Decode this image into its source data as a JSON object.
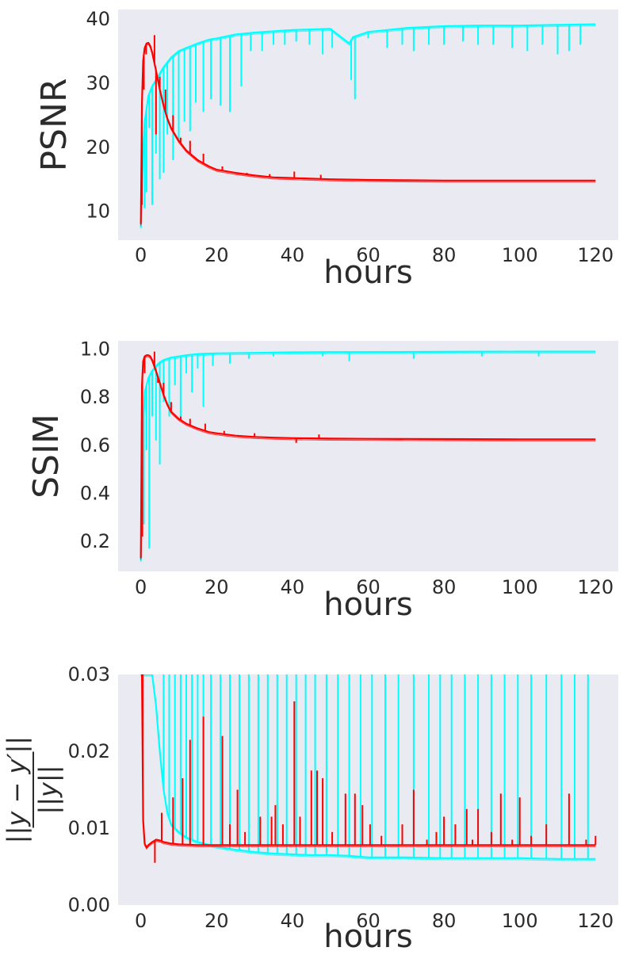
{
  "chart_data": [
    {
      "type": "line",
      "title": "",
      "xlabel": "hours",
      "ylabel": "PSNR",
      "xlim": [
        -6,
        126
      ],
      "ylim": [
        5.5,
        41.5
      ],
      "xticks": [
        0,
        20,
        40,
        60,
        80,
        100,
        120
      ],
      "yticks": [
        10,
        20,
        30,
        40
      ],
      "grid": false,
      "legend": "none",
      "background": "#eaeaf2",
      "series": [
        {
          "color": "#00ffff",
          "x": [
            0.0,
            0.5,
            1.0,
            2.0,
            3.0,
            4.0,
            5.0,
            6.0,
            8.0,
            10.0,
            12.0,
            15.0,
            18.0,
            20.0,
            25.0,
            30.0,
            35.0,
            40.0,
            45.0,
            50.0,
            55.0,
            56.0,
            60.0,
            70.0,
            80.0,
            90.0,
            100.0,
            110.0,
            120.0
          ],
          "y": [
            7.5,
            18.0,
            24.0,
            28.0,
            29.5,
            30.5,
            31.5,
            32.5,
            34.0,
            35.0,
            35.5,
            36.2,
            36.8,
            37.0,
            37.6,
            37.9,
            38.1,
            38.3,
            38.4,
            38.5,
            36.2,
            37.2,
            38.0,
            38.6,
            38.9,
            39.0,
            39.0,
            39.1,
            39.2
          ],
          "dips": [
            [
              1.0,
              10.5
            ],
            [
              1.5,
              13.0
            ],
            [
              2.2,
              23.0
            ],
            [
              3.0,
              11.0
            ],
            [
              4.0,
              19.0
            ],
            [
              5.0,
              15.0
            ],
            [
              6.0,
              16.0
            ],
            [
              7.0,
              22.0
            ],
            [
              8.5,
              18.0
            ],
            [
              10.0,
              21.0
            ],
            [
              11.5,
              24.0
            ],
            [
              13.0,
              22.5
            ],
            [
              14.5,
              27.0
            ],
            [
              16.5,
              25.5
            ],
            [
              18.5,
              27.5
            ],
            [
              21.0,
              26.5
            ],
            [
              23.5,
              25.5
            ],
            [
              26.5,
              29.5
            ],
            [
              29.0,
              35.0
            ],
            [
              32.0,
              35.0
            ],
            [
              35.0,
              36.0
            ],
            [
              38.0,
              36.0
            ],
            [
              41.0,
              36.5
            ],
            [
              44.5,
              36.0
            ],
            [
              48.0,
              34.5
            ],
            [
              50.5,
              35.5
            ],
            [
              55.5,
              30.5
            ],
            [
              56.5,
              27.5
            ],
            [
              60.0,
              37.0
            ],
            [
              65.0,
              35.5
            ],
            [
              69.0,
              36.0
            ],
            [
              72.0,
              35.0
            ],
            [
              76.0,
              36.0
            ],
            [
              80.0,
              36.0
            ],
            [
              85.0,
              36.5
            ],
            [
              89.0,
              36.0
            ],
            [
              93.0,
              36.0
            ],
            [
              98.0,
              35.5
            ],
            [
              102.0,
              35.0
            ],
            [
              106.0,
              36.0
            ],
            [
              110.0,
              34.5
            ],
            [
              113.0,
              35.0
            ],
            [
              116.0,
              36.0
            ]
          ]
        },
        {
          "color": "#ff0000",
          "x": [
            0.0,
            0.3,
            0.6,
            1.0,
            1.5,
            2.0,
            2.5,
            3.0,
            4.0,
            5.0,
            6.0,
            7.0,
            8.0,
            10.0,
            12.0,
            15.0,
            18.0,
            20.0,
            25.0,
            30.0,
            35.0,
            40.0,
            50.0,
            60.0,
            70.0,
            80.0,
            100.0,
            120.0
          ],
          "y": [
            8.0,
            27.0,
            33.5,
            35.5,
            36.2,
            36.3,
            35.8,
            34.8,
            32.0,
            29.0,
            26.5,
            24.5,
            23.0,
            21.0,
            19.5,
            18.0,
            17.0,
            16.5,
            16.0,
            15.6,
            15.3,
            15.2,
            15.0,
            14.9,
            14.85,
            14.8,
            14.8,
            14.8
          ],
          "spikes": [
            [
              0.3,
              11.0
            ],
            [
              0.8,
              29.0
            ],
            [
              1.4,
              34.5
            ],
            [
              3.6,
              37.5
            ],
            [
              4.0,
              22.0
            ],
            [
              5.0,
              31.0
            ],
            [
              6.5,
              29.0
            ],
            [
              8.5,
              25.0
            ],
            [
              10.5,
              21.5
            ],
            [
              13.0,
              21.0
            ],
            [
              16.5,
              19.0
            ],
            [
              21.5,
              17.0
            ],
            [
              28.0,
              16.0
            ],
            [
              34.0,
              15.8
            ],
            [
              40.5,
              16.2
            ],
            [
              47.5,
              15.7
            ]
          ]
        }
      ]
    },
    {
      "type": "line",
      "title": "",
      "xlabel": "hours",
      "ylabel": "SSIM",
      "xlim": [
        -6,
        126
      ],
      "ylim": [
        0.075,
        1.035
      ],
      "xticks": [
        0,
        20,
        40,
        60,
        80,
        100,
        120
      ],
      "yticks": [
        0.2,
        0.4,
        0.6,
        0.8,
        1.0
      ],
      "ytick_labels": [
        "0.2",
        "0.4",
        "0.6",
        "0.8",
        "1.0"
      ],
      "grid": false,
      "legend": "none",
      "background": "#eaeaf2",
      "series": [
        {
          "color": "#00ffff",
          "x": [
            0.0,
            0.5,
            1.0,
            2.0,
            3.0,
            4.0,
            5.0,
            6.0,
            8.0,
            10.0,
            12.0,
            15.0,
            20.0,
            30.0,
            40.0,
            50.0,
            60.0,
            80.0,
            100.0,
            120.0
          ],
          "y": [
            0.12,
            0.6,
            0.82,
            0.88,
            0.91,
            0.93,
            0.945,
            0.955,
            0.965,
            0.97,
            0.975,
            0.98,
            0.983,
            0.985,
            0.987,
            0.988,
            0.988,
            0.989,
            0.99,
            0.99
          ],
          "dips": [
            [
              0.8,
              0.27
            ],
            [
              1.5,
              0.58
            ],
            [
              2.2,
              0.17
            ],
            [
              3.0,
              0.72
            ],
            [
              4.0,
              0.62
            ],
            [
              5.0,
              0.52
            ],
            [
              6.0,
              0.78
            ],
            [
              7.5,
              0.72
            ],
            [
              9.0,
              0.85
            ],
            [
              10.5,
              0.72
            ],
            [
              12.0,
              0.9
            ],
            [
              13.5,
              0.82
            ],
            [
              15.0,
              0.92
            ],
            [
              16.5,
              0.76
            ],
            [
              19.0,
              0.93
            ],
            [
              23.5,
              0.94
            ],
            [
              28.5,
              0.96
            ],
            [
              35.0,
              0.97
            ],
            [
              48.0,
              0.97
            ],
            [
              55.0,
              0.95
            ],
            [
              72.0,
              0.96
            ],
            [
              90.0,
              0.97
            ],
            [
              105.0,
              0.97
            ]
          ]
        },
        {
          "color": "#ff0000",
          "x": [
            0.0,
            0.3,
            0.6,
            1.0,
            1.5,
            2.0,
            2.5,
            3.0,
            4.0,
            5.0,
            6.0,
            7.0,
            8.0,
            10.0,
            12.0,
            15.0,
            18.0,
            20.0,
            25.0,
            30.0,
            35.0,
            40.0,
            50.0,
            60.0,
            80.0,
            100.0,
            120.0
          ],
          "y": [
            0.13,
            0.85,
            0.95,
            0.97,
            0.975,
            0.975,
            0.97,
            0.955,
            0.91,
            0.86,
            0.81,
            0.77,
            0.74,
            0.71,
            0.69,
            0.67,
            0.655,
            0.65,
            0.64,
            0.635,
            0.632,
            0.63,
            0.628,
            0.627,
            0.626,
            0.625,
            0.625
          ],
          "spikes": [
            [
              0.4,
              0.22
            ],
            [
              1.0,
              0.9
            ],
            [
              3.6,
              0.99
            ],
            [
              4.5,
              0.86
            ],
            [
              6.0,
              0.86
            ],
            [
              8.0,
              0.78
            ],
            [
              10.5,
              0.72
            ],
            [
              13.0,
              0.71
            ],
            [
              17.0,
              0.69
            ],
            [
              22.0,
              0.66
            ],
            [
              30.0,
              0.65
            ],
            [
              41.0,
              0.61
            ],
            [
              47.0,
              0.645
            ]
          ]
        }
      ]
    },
    {
      "type": "line",
      "title": "",
      "xlabel": "hours",
      "ylabel_numerator": "||y − y′||",
      "ylabel_denominator": "||y||",
      "xlim": [
        -6,
        126
      ],
      "ylim": [
        0.0,
        0.03
      ],
      "xticks": [
        0,
        20,
        40,
        60,
        80,
        100,
        120
      ],
      "yticks": [
        0.0,
        0.01,
        0.02,
        0.03
      ],
      "ytick_labels": [
        "0.00",
        "0.01",
        "0.02",
        "0.03"
      ],
      "grid": false,
      "legend": "none",
      "background": "#eaeaf2",
      "series": [
        {
          "color": "#00ffff",
          "x": [
            0.0,
            1.0,
            2.0,
            3.0,
            4.0,
            5.0,
            6.0,
            7.0,
            8.0,
            10.0,
            12.0,
            15.0,
            20.0,
            25.0,
            30.0,
            35.0,
            40.0,
            45.0,
            50.0,
            55.0,
            60.0,
            70.0,
            80.0,
            90.0,
            100.0,
            110.0,
            120.0
          ],
          "y": [
            0.03,
            0.03,
            0.03,
            0.03,
            0.026,
            0.02,
            0.015,
            0.012,
            0.0105,
            0.0095,
            0.0088,
            0.0082,
            0.0076,
            0.0072,
            0.0069,
            0.0067,
            0.0066,
            0.0065,
            0.0065,
            0.0064,
            0.0062,
            0.0062,
            0.0061,
            0.0061,
            0.0061,
            0.006,
            0.006
          ],
          "spikes_x": [
            6.0,
            7.5,
            9.0,
            10.5,
            12.0,
            13.5,
            15.0,
            16.5,
            18.5,
            21.0,
            23.5,
            26.0,
            28.5,
            31.0,
            33.5,
            36.0,
            38.5,
            41.0,
            43.5,
            46.0,
            49.0,
            52.0,
            55.0,
            58.0,
            61.0,
            64.5,
            68.0,
            72.0,
            76.0,
            79.0,
            82.0,
            85.5,
            89.0,
            92.5,
            96.0,
            99.5,
            103.0,
            107.0,
            111.0,
            114.5,
            118.0
          ],
          "spike_top": 0.03
        },
        {
          "color": "#ff0000",
          "x": [
            0.0,
            0.3,
            0.6,
            1.0,
            1.5,
            2.0,
            3.0,
            4.0,
            5.0,
            6.0,
            8.0,
            10.0,
            15.0,
            20.0,
            30.0,
            40.0,
            60.0,
            80.0,
            100.0,
            120.0
          ],
          "y": [
            0.03,
            0.03,
            0.011,
            0.008,
            0.0075,
            0.0078,
            0.0082,
            0.0085,
            0.0084,
            0.0082,
            0.008,
            0.0079,
            0.0078,
            0.0078,
            0.0078,
            0.0078,
            0.0078,
            0.0078,
            0.0078,
            0.0078
          ],
          "spikes": [
            [
              0.5,
              0.03
            ],
            [
              3.7,
              0.0055
            ],
            [
              5.5,
              0.012
            ],
            [
              8.5,
              0.014
            ],
            [
              11.0,
              0.0165
            ],
            [
              13.0,
              0.0215
            ],
            [
              16.5,
              0.0245
            ],
            [
              21.5,
              0.022
            ],
            [
              23.5,
              0.0105
            ],
            [
              25.5,
              0.015
            ],
            [
              27.5,
              0.0095
            ],
            [
              31.5,
              0.0115
            ],
            [
              34.5,
              0.0115
            ],
            [
              35.5,
              0.013
            ],
            [
              37.5,
              0.0105
            ],
            [
              40.5,
              0.0265
            ],
            [
              42.0,
              0.0115
            ],
            [
              45.0,
              0.0175
            ],
            [
              46.5,
              0.0175
            ],
            [
              48.0,
              0.0165
            ],
            [
              50.5,
              0.0095
            ],
            [
              54.0,
              0.0145
            ],
            [
              56.5,
              0.0145
            ],
            [
              58.5,
              0.013
            ],
            [
              60.5,
              0.0105
            ],
            [
              63.5,
              0.009
            ],
            [
              69.0,
              0.0105
            ],
            [
              72.0,
              0.015
            ],
            [
              75.5,
              0.0085
            ],
            [
              78.0,
              0.0095
            ],
            [
              80.0,
              0.0115
            ],
            [
              83.0,
              0.0105
            ],
            [
              86.0,
              0.0125
            ],
            [
              87.5,
              0.0085
            ],
            [
              89.0,
              0.0125
            ],
            [
              92.5,
              0.0095
            ],
            [
              95.0,
              0.0145
            ],
            [
              98.0,
              0.0085
            ],
            [
              100.0,
              0.014
            ],
            [
              103.0,
              0.009
            ],
            [
              107.0,
              0.0105
            ],
            [
              113.0,
              0.0145
            ],
            [
              117.5,
              0.0085
            ],
            [
              120.0,
              0.009
            ]
          ]
        }
      ]
    }
  ]
}
